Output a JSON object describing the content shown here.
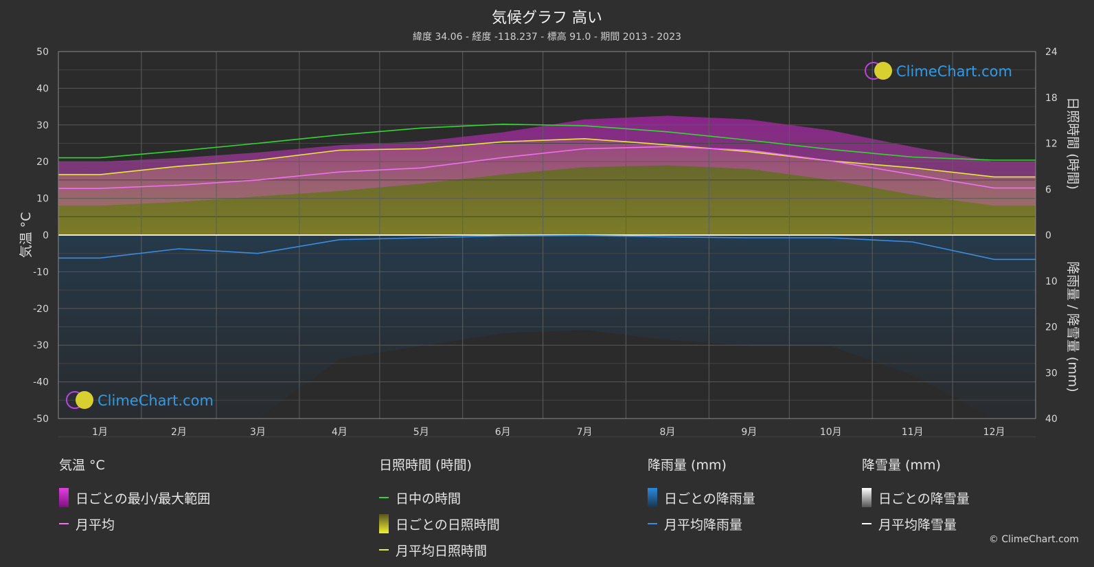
{
  "title": "気候グラフ 高い",
  "subtitle": "緯度 34.06 - 経度 -118.237 - 標高 91.0 - 期間 2013 - 2023",
  "logo_text": "ClimeChart.com",
  "copyright": "© ClimeChart.com",
  "chart_data": {
    "type": "area",
    "months": [
      "1月",
      "2月",
      "3月",
      "4月",
      "5月",
      "6月",
      "7月",
      "8月",
      "9月",
      "10月",
      "11月",
      "12月"
    ],
    "axes": {
      "left": {
        "label": "気温 °C",
        "range": [
          -50,
          50
        ],
        "ticks": [
          50,
          40,
          30,
          20,
          10,
          0,
          -10,
          -20,
          -30,
          -40,
          -50
        ]
      },
      "right_top": {
        "label": "日照時間 (時間)",
        "range": [
          0,
          24
        ],
        "ticks": [
          24,
          18,
          12,
          6,
          0
        ]
      },
      "right_bottom": {
        "label": "降雨量 / 降雪量 (mm)",
        "range": [
          0,
          40
        ],
        "ticks": [
          10,
          20,
          30,
          40
        ]
      }
    },
    "series": [
      {
        "name": "日中の時間",
        "unit": "hours",
        "color": "#32d732",
        "values": [
          10.1,
          11.0,
          12.0,
          13.1,
          14.0,
          14.5,
          14.3,
          13.5,
          12.4,
          11.2,
          10.2,
          9.8
        ]
      },
      {
        "name": "月平均日照時間",
        "unit": "hours",
        "color": "#e8e840",
        "values": [
          7.9,
          9.0,
          9.8,
          11.1,
          11.3,
          12.2,
          12.6,
          11.8,
          10.9,
          9.7,
          8.8,
          7.6
        ]
      },
      {
        "name": "月平均",
        "unit": "°C",
        "color": "#f070f0",
        "values": [
          12.7,
          13.6,
          15.0,
          17.2,
          18.3,
          21.1,
          23.5,
          24.1,
          23.1,
          20.2,
          16.5,
          12.8
        ]
      },
      {
        "name": "月平均降雨量",
        "unit": "mm",
        "color": "#3a8de0",
        "values": [
          5.0,
          3.0,
          4.0,
          1.0,
          0.6,
          0.2,
          0.1,
          0.4,
          0.6,
          0.6,
          1.5,
          5.3
        ]
      },
      {
        "name": "月平均降雪量",
        "unit": "mm",
        "color": "#ffffff",
        "values": [
          0,
          0,
          0,
          0,
          0,
          0,
          0,
          0,
          0,
          0,
          0,
          0
        ]
      }
    ],
    "daily_range_band": {
      "name": "日ごとの最小/最大範囲",
      "unit": "°C",
      "color": "#d020d0",
      "max": [
        20,
        21,
        22.5,
        24.5,
        25.5,
        28,
        31.5,
        32.5,
        31.5,
        28.5,
        24,
        20
      ],
      "min": [
        8,
        9,
        10.5,
        12,
        14,
        16.5,
        18.5,
        19,
        18,
        15,
        11,
        8
      ]
    },
    "daily_sunshine_band": {
      "name": "日ごとの日照時間",
      "color": "#9a9a2a"
    },
    "daily_rain_band": {
      "name": "日ごとの降雨量",
      "color": "#1e5a8a"
    },
    "daily_snow_band": {
      "name": "日ごとの降雪量",
      "color": "#cccccc"
    },
    "grid": true
  },
  "legend": {
    "temp": {
      "head": "気温 °C",
      "items": [
        "日ごとの最小/最大範囲",
        "月平均"
      ]
    },
    "sun": {
      "head": "日照時間 (時間)",
      "items": [
        "日中の時間",
        "日ごとの日照時間",
        "月平均日照時間"
      ]
    },
    "rain": {
      "head": "降雨量 (mm)",
      "items": [
        "日ごとの降雨量",
        "月平均降雨量"
      ]
    },
    "snow": {
      "head": "降雪量 (mm)",
      "items": [
        "日ごとの降雪量",
        "月平均降雪量"
      ]
    }
  }
}
